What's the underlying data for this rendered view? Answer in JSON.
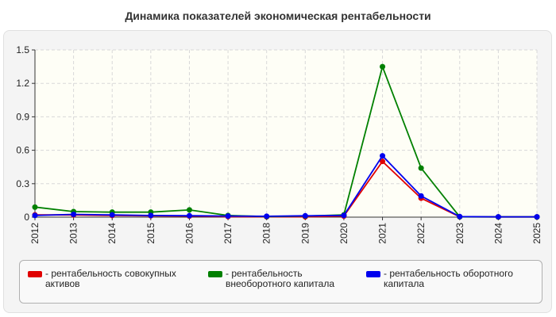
{
  "title": "Динамика показателей экономическая рентабельности",
  "chart_data": {
    "type": "line",
    "title": "Динамика показателей экономическая рентабельности",
    "x": [
      "2012",
      "2013",
      "2014",
      "2015",
      "2016",
      "2017",
      "2018",
      "2019",
      "2020",
      "2021",
      "2022",
      "2023",
      "2024",
      "2025"
    ],
    "ylim": [
      0,
      1.5
    ],
    "yticks": [
      "0",
      "0.3",
      "0.6",
      "0.9",
      "1.2",
      "1.5"
    ],
    "grid": true,
    "legend_position": "bottom",
    "series": [
      {
        "name": "- рентабельность совокупных активов",
        "color": "#e00000",
        "values": [
          0.02,
          0.02,
          0.015,
          0.012,
          0.01,
          0.005,
          0.003,
          0.003,
          0.01,
          0.5,
          0.17,
          0.003,
          0.002,
          0.002
        ]
      },
      {
        "name": "- рентабельность внеоборотного капитала",
        "color": "#008000",
        "values": [
          0.09,
          0.05,
          0.045,
          0.045,
          0.065,
          0.015,
          0.005,
          0.01,
          0.02,
          1.35,
          0.44,
          0.003,
          0.002,
          0.002
        ]
      },
      {
        "name": "- рентабельность оборотного капитала",
        "color": "#0000ee",
        "values": [
          0.015,
          0.025,
          0.02,
          0.015,
          0.013,
          0.01,
          0.008,
          0.012,
          0.015,
          0.55,
          0.19,
          0.005,
          0.003,
          0.003
        ]
      }
    ]
  }
}
